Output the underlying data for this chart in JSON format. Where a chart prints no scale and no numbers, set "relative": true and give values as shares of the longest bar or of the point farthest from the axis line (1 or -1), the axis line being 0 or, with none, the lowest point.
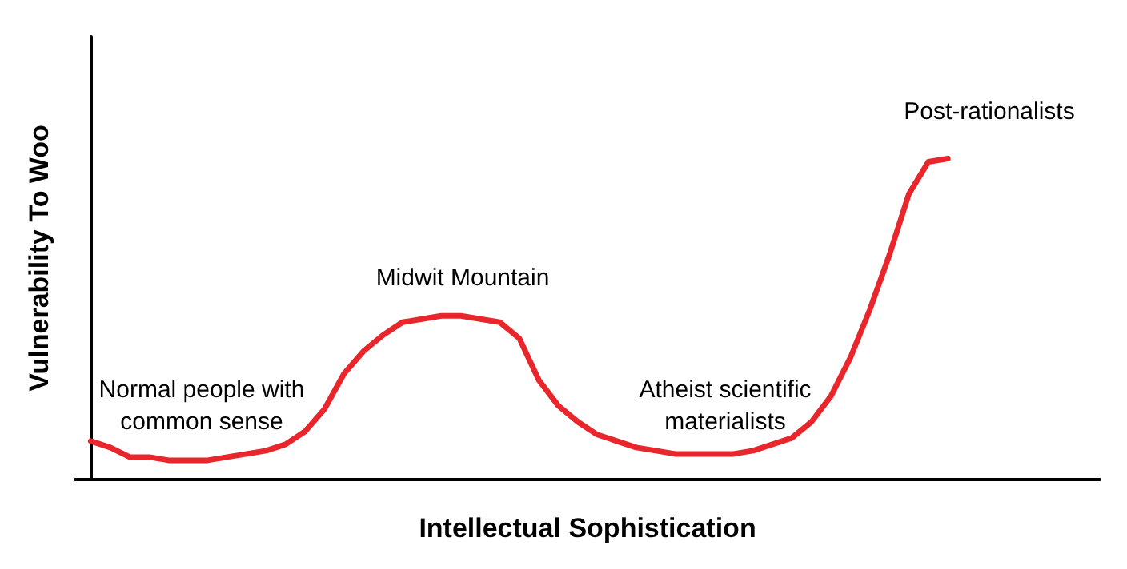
{
  "chart_data": {
    "type": "line",
    "relative": true,
    "xlabel": "Intellectual Sophistication",
    "ylabel": "Vulnerability To Woo",
    "annotations": [
      "Normal people with\ncommon sense",
      "Midwit Mountain",
      "Atheist scientific\nmaterialists",
      "Post-rationalists"
    ],
    "categories": [
      null,
      null,
      null,
      null,
      null,
      null,
      null,
      null,
      null,
      null,
      null,
      null,
      null,
      null,
      null,
      null,
      null,
      null,
      null,
      null,
      null,
      null,
      null,
      null,
      null,
      null,
      null,
      null,
      null,
      null,
      null,
      null,
      null,
      null,
      null,
      null,
      null,
      null,
      null,
      null,
      null,
      null,
      null,
      null,
      null
    ],
    "series": [
      {
        "color": "#e8262b",
        "values": [
          0.12,
          0.1,
          0.07,
          0.07,
          0.06,
          0.06,
          0.06,
          0.07,
          0.08,
          0.09,
          0.11,
          0.15,
          0.22,
          0.33,
          0.4,
          0.45,
          0.49,
          0.5,
          0.51,
          0.51,
          0.5,
          0.49,
          0.44,
          0.31,
          0.23,
          0.18,
          0.14,
          0.12,
          0.1,
          0.09,
          0.08,
          0.08,
          0.08,
          0.08,
          0.09,
          0.11,
          0.13,
          0.18,
          0.26,
          0.38,
          0.53,
          0.7,
          0.89,
          0.99,
          1
        ]
      }
    ],
    "grid": false,
    "marker": "none",
    "line_style": "solid"
  }
}
